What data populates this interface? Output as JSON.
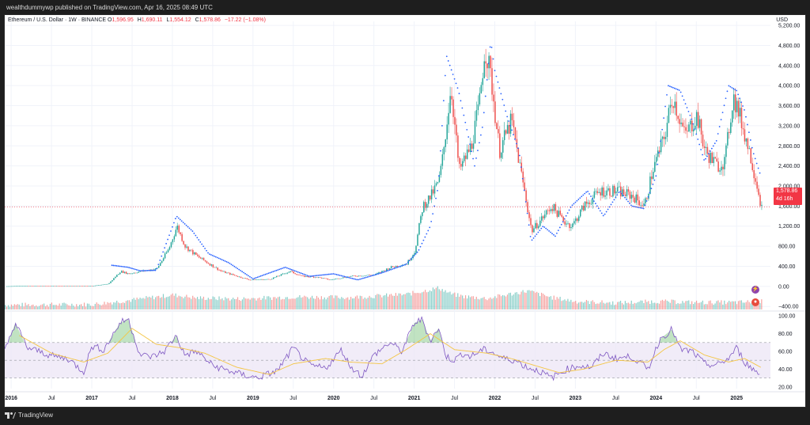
{
  "publisher_line": "wealthdummywp published on TradingView.com, Apr 16, 2025 08:49 UTC",
  "header": {
    "symbol": "Ethereum / U.S. Dollar · 1W · BINANCE",
    "o_label": "O",
    "o": "1,596.95",
    "h_label": "H",
    "h": "1,690.11",
    "l_label": "L",
    "l": "1,554.12",
    "c_label": "C",
    "c": "1,578.86",
    "change": "−17.22 (−1.08%)"
  },
  "currency": "USD",
  "last_price": {
    "price": "1,578.86",
    "countdown": "4d 16h"
  },
  "footer": {
    "brand": "TradingView"
  },
  "colors": {
    "up": "#26a69a",
    "down": "#ef5350",
    "sar": "#2962ff",
    "rsi": "#7e57c2",
    "rsi_ma": "#f4c542",
    "rsi_band": "#ede7f6",
    "price_line": "#f23645"
  },
  "chart_data": [
    {
      "type": "line",
      "title": "Ethereum / U.S. Dollar · 1W · BINANCE",
      "price_axis_ticks": [
        5200,
        4800,
        4400,
        4000,
        3600,
        3200,
        2800,
        2400,
        2000,
        1600,
        1200,
        800,
        400,
        0,
        -400
      ],
      "price_axis_labels": [
        "5,200.00",
        "4,800.00",
        "4,400.00",
        "4,000.00",
        "3,600.00",
        "3,200.00",
        "2,800.00",
        "2,400.00",
        "2,000.00",
        "1,600.00",
        "1,200.00",
        "800.00",
        "400.00",
        "0.00",
        "−400.00"
      ],
      "ylim": [
        -460,
        5280
      ],
      "time_axis_labels": [
        "2016",
        "Jul",
        "2017",
        "Jul",
        "2018",
        "Jul",
        "2019",
        "Jul",
        "2020",
        "Jul",
        "2021",
        "Jul",
        "2022",
        "Jul",
        "2023",
        "Jul",
        "2024",
        "Jul",
        "2025"
      ],
      "time_axis_values": [
        2016.0,
        2016.5,
        2017.0,
        2017.5,
        2018.0,
        2018.5,
        2019.0,
        2019.5,
        2020.0,
        2020.5,
        2021.0,
        2021.5,
        2022.0,
        2022.5,
        2023.0,
        2023.5,
        2024.0,
        2024.5,
        2025.0
      ],
      "xlim": [
        2015.92,
        2025.42
      ],
      "series": [
        {
          "x": [
            2015.92,
            2016.2,
            2016.5,
            2016.8,
            2017.0,
            2017.2,
            2017.35,
            2017.45,
            2017.6,
            2017.8,
            2017.95,
            2018.05,
            2018.15,
            2018.3,
            2018.45,
            2018.6,
            2018.8,
            2018.95,
            2019.2,
            2019.45,
            2019.6,
            2019.8,
            2019.95,
            2020.2,
            2020.5,
            2020.7,
            2020.9,
            2021.0,
            2021.1,
            2021.2,
            2021.3,
            2021.35,
            2021.45,
            2021.55,
            2021.7,
            2021.8,
            2021.87,
            2021.95,
            2022.05,
            2022.2,
            2022.35,
            2022.45,
            2022.55,
            2022.7,
            2022.85,
            2022.95,
            2023.1,
            2023.3,
            2023.5,
            2023.7,
            2023.85,
            2023.95,
            2024.1,
            2024.2,
            2024.35,
            2024.5,
            2024.6,
            2024.75,
            2024.85,
            2024.95,
            2025.05,
            2025.15,
            2025.25,
            2025.3
          ],
          "values": [
            1,
            12,
            11,
            9,
            8,
            50,
            300,
            250,
            300,
            350,
            750,
            1200,
            800,
            600,
            450,
            300,
            200,
            130,
            140,
            300,
            200,
            180,
            130,
            200,
            230,
            380,
            450,
            700,
            1600,
            1800,
            2100,
            2600,
            4000,
            2300,
            2800,
            3600,
            4800,
            4100,
            2700,
            3300,
            2000,
            1100,
            1300,
            1600,
            1300,
            1200,
            1600,
            1900,
            1900,
            1800,
            1600,
            2300,
            3000,
            3800,
            3000,
            3400,
            2700,
            2400,
            2500,
            3800,
            3300,
            2700,
            2000,
            1579
          ]
        },
        {
          "name": "Volume",
          "x": [
            2015.92,
            2017.0,
            2017.5,
            2018.0,
            2018.3,
            2018.8,
            2019.5,
            2020.2,
            2020.9,
            2021.3,
            2021.45,
            2021.6,
            2021.9,
            2022.4,
            2022.7,
            2023.0,
            2023.5,
            2024.0,
            2024.5,
            2025.0,
            2025.3
          ],
          "values": [
            -370,
            -360,
            -270,
            -170,
            -230,
            -250,
            -210,
            -220,
            -160,
            -30,
            -150,
            -200,
            -240,
            -90,
            -220,
            -300,
            -330,
            -300,
            -320,
            -320,
            -300
          ]
        },
        {
          "name": "SAR",
          "x": [
            2017.25,
            2017.45,
            2017.6,
            2017.8,
            2018.05,
            2018.25,
            2018.45,
            2018.7,
            2019.0,
            2019.4,
            2019.7,
            2020.0,
            2020.3,
            2020.6,
            2020.9,
            2021.05,
            2021.2,
            2021.3,
            2021.4,
            2021.55,
            2021.75,
            2021.85,
            2021.95,
            2022.0,
            2022.15,
            2022.3,
            2022.45,
            2022.6,
            2022.75,
            2022.95,
            2023.15,
            2023.35,
            2023.55,
            2023.7,
            2023.85,
            2024.0,
            2024.15,
            2024.3,
            2024.45,
            2024.6,
            2024.75,
            2024.9,
            2025.0,
            2025.1,
            2025.2,
            2025.3
          ],
          "values": [
            420,
            380,
            310,
            320,
            1400,
            1100,
            650,
            470,
            150,
            380,
            200,
            250,
            130,
            270,
            440,
            700,
            1200,
            2000,
            4600,
            3900,
            2400,
            3200,
            4900,
            4300,
            3400,
            2700,
            900,
            1200,
            1000,
            1600,
            1900,
            1400,
            1900,
            1600,
            1550,
            2200,
            4000,
            3900,
            3300,
            2500,
            2900,
            4000,
            3900,
            3500,
            2700,
            2200
          ]
        }
      ],
      "grid": true
    },
    {
      "type": "line",
      "title": "RSI",
      "axis_ticks": [
        100,
        80,
        60,
        40,
        20
      ],
      "axis_labels": [
        "100.00",
        "80.00",
        "60.00",
        "40.00",
        "20.00"
      ],
      "bands": [
        30,
        50,
        70
      ],
      "ylim": [
        18,
        102
      ],
      "xlim": [
        2015.92,
        2025.42
      ],
      "series": [
        {
          "name": "RSI",
          "x": [
            2015.92,
            2016.05,
            2016.2,
            2016.35,
            2016.5,
            2016.7,
            2016.9,
            2017.0,
            2017.15,
            2017.35,
            2017.45,
            2017.6,
            2017.75,
            2017.9,
            2018.05,
            2018.15,
            2018.3,
            2018.5,
            2018.7,
            2018.9,
            2019.05,
            2019.3,
            2019.5,
            2019.7,
            2019.9,
            2020.1,
            2020.2,
            2020.35,
            2020.5,
            2020.7,
            2020.85,
            2021.0,
            2021.1,
            2021.2,
            2021.3,
            2021.4,
            2021.5,
            2021.6,
            2021.7,
            2021.85,
            2021.95,
            2022.1,
            2022.25,
            2022.4,
            2022.55,
            2022.7,
            2022.9,
            2023.05,
            2023.2,
            2023.35,
            2023.5,
            2023.7,
            2023.9,
            2024.05,
            2024.2,
            2024.3,
            2024.45,
            2024.6,
            2024.75,
            2024.9,
            2025.0,
            2025.1,
            2025.2,
            2025.3
          ],
          "values": [
            60,
            92,
            64,
            60,
            55,
            52,
            37,
            66,
            62,
            92,
            97,
            56,
            54,
            60,
            78,
            56,
            60,
            44,
            38,
            33,
            30,
            38,
            64,
            44,
            41,
            62,
            44,
            32,
            56,
            70,
            60,
            92,
            96,
            72,
            86,
            54,
            50,
            58,
            54,
            62,
            60,
            52,
            50,
            42,
            38,
            30,
            40,
            44,
            42,
            58,
            52,
            54,
            40,
            74,
            85,
            62,
            60,
            46,
            44,
            52,
            64,
            48,
            40,
            34
          ],
          "color": "#7e57c2"
        },
        {
          "name": "RSI-based MA",
          "x": [
            2016.1,
            2016.5,
            2016.9,
            2017.2,
            2017.5,
            2017.8,
            2018.1,
            2018.4,
            2018.8,
            2019.2,
            2019.5,
            2019.9,
            2020.2,
            2020.6,
            2020.9,
            2021.2,
            2021.5,
            2021.9,
            2022.2,
            2022.5,
            2022.8,
            2023.1,
            2023.5,
            2023.9,
            2024.1,
            2024.3,
            2024.6,
            2024.9,
            2025.1,
            2025.3
          ],
          "values": [
            78,
            58,
            48,
            58,
            86,
            68,
            64,
            58,
            42,
            34,
            46,
            52,
            48,
            46,
            62,
            80,
            62,
            58,
            52,
            44,
            36,
            40,
            50,
            48,
            62,
            72,
            56,
            48,
            52,
            42
          ],
          "color": "#f4c542"
        }
      ]
    }
  ]
}
